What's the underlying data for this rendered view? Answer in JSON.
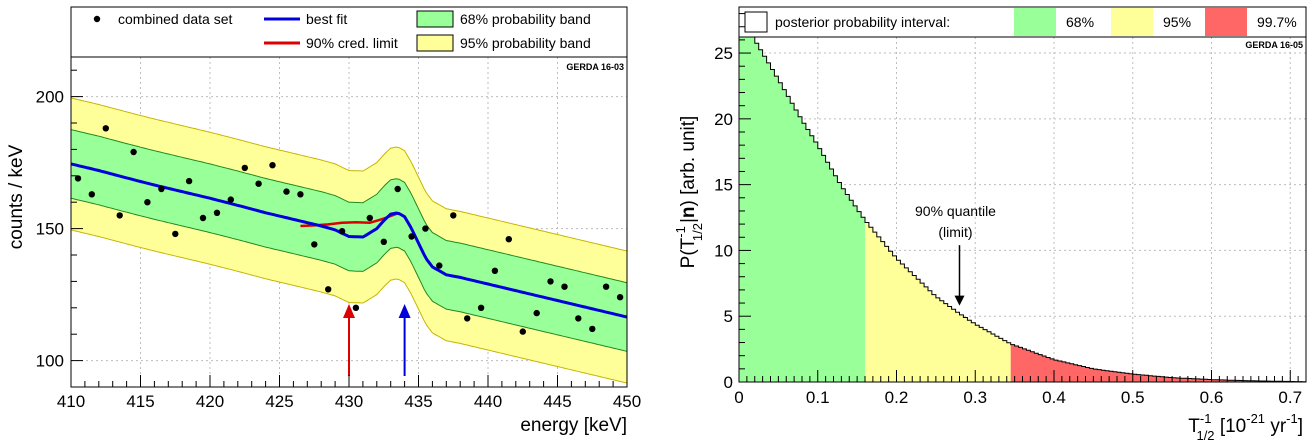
{
  "chart_data": [
    {
      "type": "scatter",
      "tag": "GERDA 16-03",
      "xlabel": "energy [keV]",
      "ylabel": "counts / keV",
      "xlim": [
        410,
        450
      ],
      "ylim": [
        90,
        215
      ],
      "xticks": [
        410,
        415,
        420,
        425,
        430,
        435,
        440,
        445,
        450
      ],
      "yticks": [
        100,
        150,
        200
      ],
      "grid": true,
      "legend": {
        "placement": "top",
        "entries": [
          {
            "label": "combined data set",
            "marker": "dot"
          },
          {
            "label": "best fit",
            "color": "#0000dd"
          },
          {
            "label": "90% cred. limit",
            "color": "#dd0000"
          },
          {
            "label": "68% probability band",
            "color": "#99ff99"
          },
          {
            "label": "95% probability band",
            "color": "#ffff99"
          }
        ]
      },
      "colors": {
        "fit": "#0000dd",
        "limit": "#dd0000",
        "band68": "#99ff99",
        "band95": "#ffff99",
        "band_edge": "#c8b400"
      },
      "series": [
        {
          "name": "combined data set",
          "x": [
            410.5,
            411.5,
            412.5,
            413.5,
            414.5,
            415.5,
            416.5,
            417.5,
            418.5,
            419.5,
            420.5,
            421.5,
            422.5,
            423.5,
            424.5,
            425.5,
            426.5,
            427.5,
            428.5,
            429.5,
            430.5,
            431.5,
            432.5,
            433.5,
            434.5,
            435.5,
            436.5,
            437.5,
            438.5,
            439.5,
            440.5,
            441.5,
            442.5,
            443.5,
            444.5,
            445.5,
            446.5,
            447.5,
            448.5,
            449.5
          ],
          "y": [
            169,
            163,
            188,
            155,
            179,
            160,
            165,
            148,
            168,
            154,
            156,
            161,
            173,
            167,
            174,
            164,
            163,
            144,
            127,
            149,
            120,
            154,
            145,
            165,
            147,
            150,
            136,
            155,
            116,
            120,
            134,
            146,
            111,
            118,
            130,
            128,
            116,
            112,
            128,
            124
          ]
        },
        {
          "name": "best fit",
          "x": [
            410,
            412,
            414,
            416,
            418,
            420,
            422,
            424,
            426,
            428,
            429,
            430,
            431,
            432,
            432.5,
            433,
            433.5,
            434,
            434.5,
            435,
            435.5,
            436,
            437,
            438,
            440,
            442,
            444,
            446,
            448,
            450
          ],
          "y": [
            174.5,
            172,
            169.2,
            166.5,
            164,
            161.5,
            158.8,
            156,
            153.5,
            151,
            149.5,
            147,
            146.8,
            150,
            153,
            155.5,
            156,
            154.5,
            150,
            144.5,
            139,
            135.5,
            132.5,
            131.5,
            129,
            126.5,
            124,
            121.5,
            119,
            116.5
          ]
        },
        {
          "name": "90% cred. limit",
          "x": [
            426.5,
            427.5,
            428.5,
            429.5,
            430.5,
            431.5,
            432.5,
            433.5
          ],
          "y": [
            151,
            151.2,
            151.6,
            152.2,
            152.4,
            152.2,
            153.8,
            155.8
          ]
        }
      ]
    },
    {
      "type": "area",
      "tag": "GERDA 16-05",
      "xlabel": "T",
      "xlabel_sup": "-1",
      "xlabel_sub": "1/2",
      "xlabel_unit": " [10",
      "xlabel_unit_sup": "-21",
      "xlabel_unit_tail": " yr",
      "xlabel_unit_tail_sup": "-1",
      "xlabel_close": "]",
      "ylabel_pre": "P(T",
      "ylabel_sup": "-1",
      "ylabel_sub": "1/2",
      "ylabel_mid": "|",
      "ylabel_bold": "n",
      "ylabel_post": ") [arb. unit]",
      "xlim": [
        0,
        0.72
      ],
      "ylim": [
        0,
        28.5
      ],
      "xticks": [
        0,
        0.1,
        0.2,
        0.3,
        0.4,
        0.5,
        0.6,
        0.7
      ],
      "xtick_labels": [
        "0",
        "0.1",
        "0.2",
        "0.3",
        "0.4",
        "0.5",
        "0.6",
        "0.7"
      ],
      "yticks": [
        0,
        5,
        10,
        15,
        20,
        25
      ],
      "grid": true,
      "legend": {
        "placement": "top",
        "title": "posterior probability interval:",
        "entries": [
          {
            "label": "68%",
            "color": "#99ff99"
          },
          {
            "label": "95%",
            "color": "#ffff99"
          },
          {
            "label": "99.7%",
            "color": "#ff6666"
          }
        ]
      },
      "intervals": [
        {
          "label": "68%",
          "from": 0,
          "to": 0.16
        },
        {
          "label": "95%",
          "from": 0.16,
          "to": 0.345
        },
        {
          "label": "99.7%",
          "from": 0.345,
          "to": 0.72
        }
      ],
      "annotation": {
        "lines": [
          "90% quantile",
          "(limit)"
        ],
        "x": 0.28,
        "arrow_y_from": 10.4,
        "arrow_y_to": 5.8
      },
      "curve": {
        "x": [
          0,
          0.02,
          0.05,
          0.08,
          0.1,
          0.13,
          0.16,
          0.2,
          0.25,
          0.28,
          0.3,
          0.345,
          0.4,
          0.45,
          0.5,
          0.55,
          0.6,
          0.65,
          0.7,
          0.72
        ],
        "y": [
          28.2,
          26,
          23,
          19.9,
          18,
          14.9,
          12.3,
          9.4,
          6.5,
          5.2,
          4.4,
          2.9,
          1.7,
          1.0,
          0.6,
          0.33,
          0.18,
          0.09,
          0.04,
          0.02
        ]
      }
    }
  ]
}
